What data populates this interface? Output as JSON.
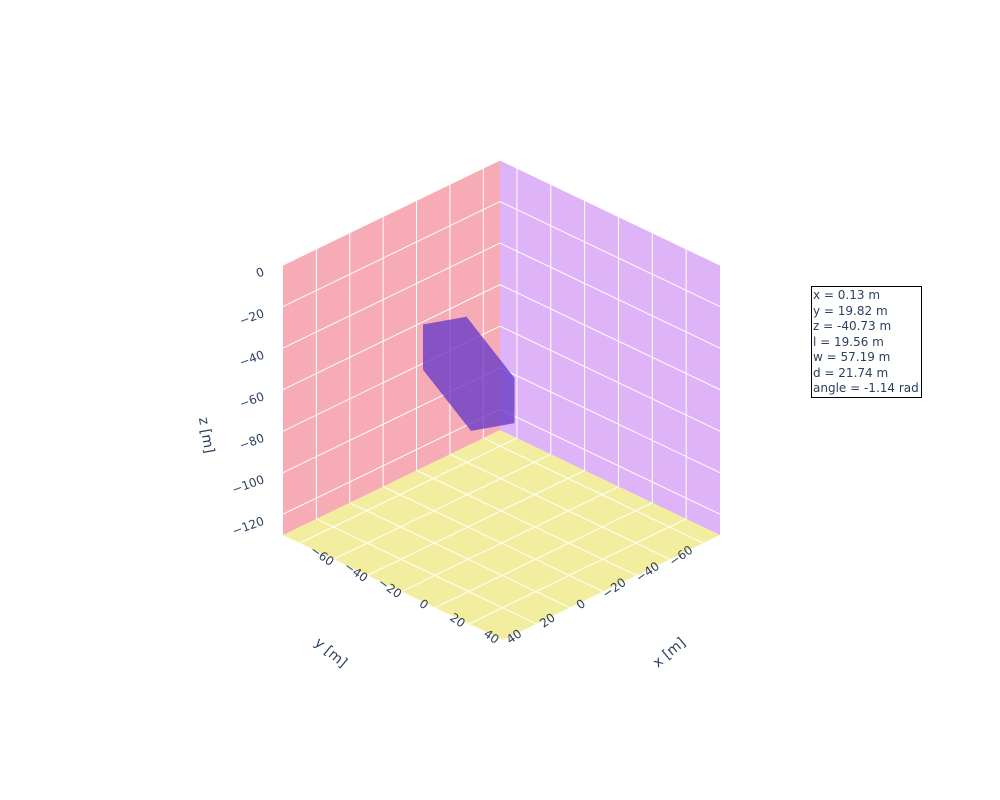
{
  "chart_data": {
    "type": "3d-box",
    "xlabel": "x [m]",
    "ylabel": "y [m]",
    "zlabel": "z [m]",
    "x_ticks": [
      "−60",
      "−40",
      "−20",
      "0",
      "20",
      "40"
    ],
    "y_ticks": [
      "−60",
      "−40",
      "−20",
      "0",
      "20",
      "40"
    ],
    "z_ticks": [
      "0",
      "−20",
      "−40",
      "−60",
      "−80",
      "−100",
      "−120"
    ],
    "xlim": [
      -70,
      60
    ],
    "ylim": [
      -70,
      60
    ],
    "zlim": [
      -130,
      0
    ],
    "grid": true,
    "walls": {
      "x_wall_color": "#f7abb4",
      "y_wall_color": "#dfb3f7",
      "floor_color": "#f3ee9f"
    },
    "box": {
      "x": 0.13,
      "y": 19.82,
      "z": -40.73,
      "l": 19.56,
      "w": 57.19,
      "d": 21.74,
      "angle": -1.14,
      "color": "#6a3dc8"
    },
    "annotation": [
      "x = 0.13 m",
      "y = 19.82 m",
      "z = -40.73 m",
      "l = 19.56 m",
      "w = 57.19 m",
      "d = 21.74 m",
      "angle = -1.14 rad"
    ]
  }
}
